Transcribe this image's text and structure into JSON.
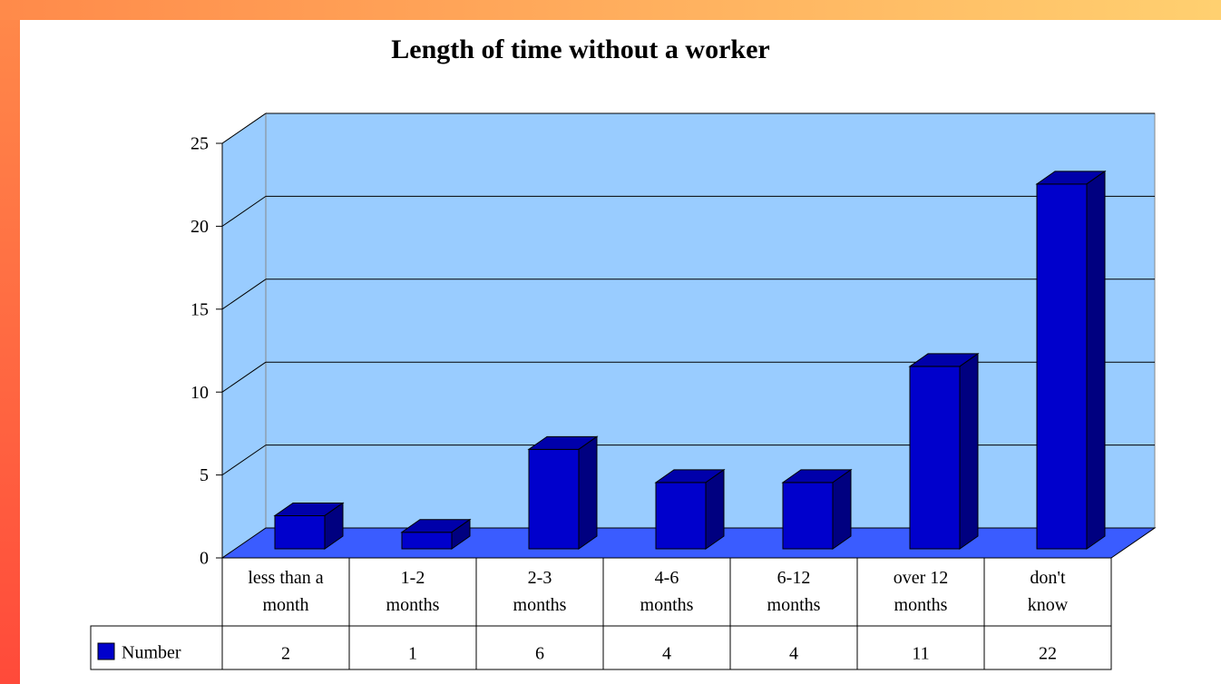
{
  "chart_data": {
    "type": "bar",
    "title": "Length of time without a worker",
    "categories": [
      "less than a month",
      "1-2 months",
      "2-3 months",
      "4-6 months",
      "6-12 months",
      "over 12 months",
      "don't know"
    ],
    "series": [
      {
        "name": "Number",
        "color": "#0000cc",
        "values": [
          2,
          1,
          6,
          4,
          4,
          11,
          22
        ]
      }
    ],
    "ylim": [
      0,
      25
    ],
    "yticks": [
      0,
      5,
      10,
      15,
      20,
      25
    ],
    "grid": true
  }
}
